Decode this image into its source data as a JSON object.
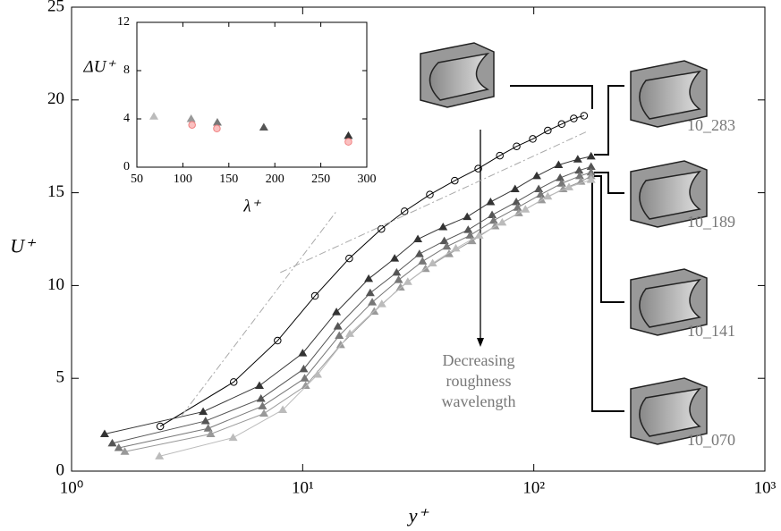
{
  "chart_data": [
    {
      "type": "line",
      "log_x": true,
      "x_label": "y⁺",
      "y_label": "U⁺",
      "xlim": [
        1,
        1000
      ],
      "ylim": [
        0,
        25
      ],
      "xticks": [
        {
          "value": 1,
          "label": "10⁰"
        },
        {
          "value": 10,
          "label": "10¹"
        },
        {
          "value": 100,
          "label": "10²"
        },
        {
          "value": 1000,
          "label": "10³"
        }
      ],
      "yticks": [
        0,
        5,
        10,
        15,
        20,
        25
      ],
      "series": [
        {
          "marker": "circle",
          "color": "#000000",
          "x": [
            2.42,
            5.03,
            7.79,
            11.3,
            15.9,
            21.9,
            27.6,
            35.5,
            45.5,
            57.5,
            71.3,
            84.3,
            99,
            115,
            132,
            149,
            165
          ],
          "values": [
            2.41,
            4.8,
            7.03,
            9.44,
            11.46,
            13.05,
            14.0,
            14.9,
            15.65,
            16.3,
            17.0,
            17.5,
            17.9,
            18.35,
            18.7,
            19.0,
            19.15
          ]
        },
        {
          "marker": "triangle",
          "color": "#333333",
          "x": [
            1.39,
            3.71,
            6.5,
            10,
            14,
            19.3,
            25,
            31.5,
            40.5,
            51.5,
            65,
            83,
            103,
            128,
            155,
            177
          ],
          "values": [
            2.0,
            3.2,
            4.6,
            6.35,
            8.57,
            10.36,
            11.46,
            12.5,
            13.15,
            13.7,
            14.5,
            15.2,
            15.9,
            16.5,
            16.8,
            16.96
          ]
        },
        {
          "marker": "triangle",
          "color": "#555555",
          "x": [
            1.5,
            3.8,
            6.6,
            10.1,
            14.2,
            19.6,
            25.5,
            32,
            41,
            52,
            66,
            84,
            105,
            130,
            157,
            177
          ],
          "values": [
            1.5,
            2.7,
            3.9,
            5.5,
            7.8,
            9.6,
            10.7,
            11.7,
            12.4,
            13.0,
            13.8,
            14.5,
            15.2,
            15.8,
            16.2,
            16.4
          ]
        },
        {
          "marker": "triangle",
          "color": "#777777",
          "x": [
            1.6,
            3.9,
            6.7,
            10.2,
            14.4,
            20,
            26,
            33,
            42,
            53,
            67,
            85,
            107,
            132,
            158,
            177
          ],
          "values": [
            1.25,
            2.3,
            3.5,
            5.0,
            7.3,
            9.1,
            10.3,
            11.3,
            12.1,
            12.7,
            13.5,
            14.2,
            14.9,
            15.5,
            15.9,
            16.1
          ]
        },
        {
          "marker": "triangle",
          "color": "#999999",
          "x": [
            1.7,
            4.0,
            6.8,
            10.3,
            14.6,
            20.4,
            26.5,
            34,
            43,
            54,
            68,
            86,
            108,
            134,
            160,
            177
          ],
          "values": [
            1.05,
            2.0,
            3.1,
            4.6,
            6.8,
            8.6,
            9.9,
            10.9,
            11.7,
            12.4,
            13.2,
            13.9,
            14.6,
            15.2,
            15.6,
            15.9
          ]
        },
        {
          "marker": "triangle",
          "color": "#bbbbbb",
          "x": [
            2.4,
            5,
            8.2,
            11.6,
            16,
            22,
            28.5,
            36.5,
            46,
            58,
            73,
            92,
            115,
            142,
            177
          ],
          "values": [
            0.8,
            1.8,
            3.3,
            5.2,
            7.4,
            9.0,
            10.2,
            11.2,
            12.0,
            12.7,
            13.4,
            14.1,
            14.8,
            15.3,
            15.7
          ]
        },
        {
          "marker": "none",
          "style": "dashdot",
          "color": "#aaaaaa",
          "x": [
            3,
            14
          ],
          "values": [
            3,
            14
          ]
        },
        {
          "marker": "none",
          "style": "dashdot",
          "color": "#aaaaaa",
          "x": [
            8,
            170
          ],
          "values": [
            10.7,
            18.3
          ]
        }
      ],
      "annotations": [
        "10_283",
        "10_189",
        "10_141",
        "10_070"
      ],
      "arrow_label": [
        "Decreasing",
        "roughness",
        "wavelength"
      ]
    },
    {
      "type": "scatter",
      "x_label": "λ⁺",
      "y_label": "ΔU⁺",
      "xlim": [
        50,
        300
      ],
      "ylim": [
        0,
        12
      ],
      "xticks": [
        50,
        100,
        150,
        200,
        250,
        300
      ],
      "yticks": [
        0,
        4,
        8,
        12
      ],
      "series": [
        {
          "marker": "triangle",
          "color": "#bbbbbb",
          "x": [
            68.5
          ],
          "values": [
            4.2
          ]
        },
        {
          "marker": "triangle",
          "color": "#999999",
          "x": [
            109
          ],
          "values": [
            4.0
          ]
        },
        {
          "marker": "triangle",
          "color": "#777777",
          "x": [
            137.5
          ],
          "values": [
            3.7
          ]
        },
        {
          "marker": "triangle",
          "color": "#555555",
          "x": [
            188
          ],
          "values": [
            3.3
          ]
        },
        {
          "marker": "triangle",
          "color": "#333333",
          "x": [
            280
          ],
          "values": [
            2.6
          ]
        },
        {
          "marker": "circle",
          "color": "#f08080",
          "x": [
            110,
            137,
            280
          ],
          "values": [
            3.5,
            3.2,
            2.1
          ]
        }
      ]
    }
  ]
}
